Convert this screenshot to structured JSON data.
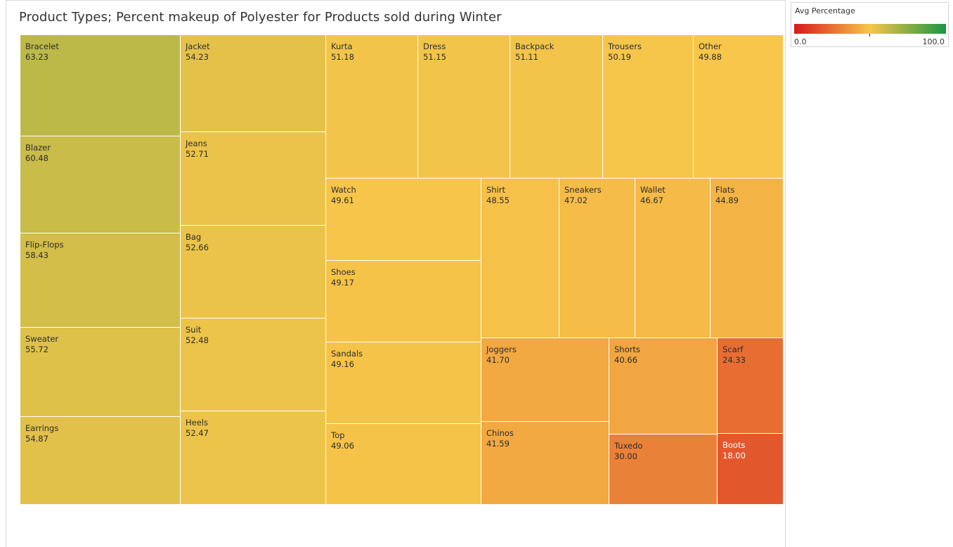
{
  "chart_data": {
    "type": "treemap",
    "title": "Product Types; Percent makeup of Polyester for Products sold during Winter",
    "color_measure": "Avg Percentage",
    "color_range": [
      0.0,
      100.0
    ],
    "color_scale": [
      "#d7191c",
      "#f7c64a",
      "#1a9641"
    ],
    "items": [
      {
        "name": "Bracelet",
        "value": 63.23
      },
      {
        "name": "Blazer",
        "value": 60.48
      },
      {
        "name": "Flip-Flops",
        "value": 58.43
      },
      {
        "name": "Sweater",
        "value": 55.72
      },
      {
        "name": "Earrings",
        "value": 54.87
      },
      {
        "name": "Jacket",
        "value": 54.23
      },
      {
        "name": "Jeans",
        "value": 52.71
      },
      {
        "name": "Bag",
        "value": 52.66
      },
      {
        "name": "Suit",
        "value": 52.48
      },
      {
        "name": "Heels",
        "value": 52.47
      },
      {
        "name": "Kurta",
        "value": 51.18
      },
      {
        "name": "Dress",
        "value": 51.15
      },
      {
        "name": "Backpack",
        "value": 51.11
      },
      {
        "name": "Trousers",
        "value": 50.19
      },
      {
        "name": "Other",
        "value": 49.88
      },
      {
        "name": "Watch",
        "value": 49.61
      },
      {
        "name": "Shoes",
        "value": 49.17
      },
      {
        "name": "Sandals",
        "value": 49.16
      },
      {
        "name": "Top",
        "value": 49.06
      },
      {
        "name": "Shirt",
        "value": 48.55
      },
      {
        "name": "Sneakers",
        "value": 47.02
      },
      {
        "name": "Wallet",
        "value": 46.67
      },
      {
        "name": "Flats",
        "value": 44.89
      },
      {
        "name": "Joggers",
        "value": 41.7
      },
      {
        "name": "Chinos",
        "value": 41.59
      },
      {
        "name": "Shorts",
        "value": 40.66
      },
      {
        "name": "Tuxedo",
        "value": 30.0
      },
      {
        "name": "Scarf",
        "value": 24.33
      },
      {
        "name": "Boots",
        "value": 18.0
      }
    ]
  },
  "legend": {
    "title": "Avg Percentage",
    "min_label": "0.0",
    "max_label": "100.0"
  }
}
